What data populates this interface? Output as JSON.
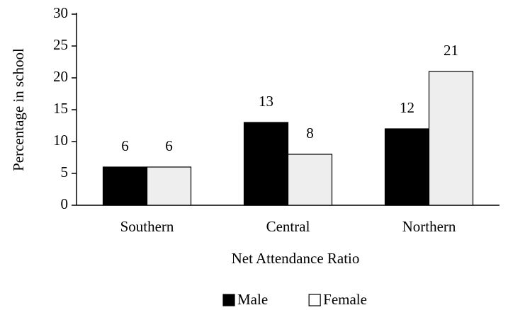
{
  "chart_data": {
    "type": "bar",
    "categories": [
      "Southern",
      "Central",
      "Northern"
    ],
    "series": [
      {
        "name": "Male",
        "color": "#000000",
        "values": [
          6,
          13,
          12
        ]
      },
      {
        "name": "Female",
        "color": "#eeeeee",
        "values": [
          6,
          8,
          21
        ]
      }
    ],
    "x_label": "Net Attendance Ratio",
    "y_label": "Percentage in school",
    "ylim": [
      0,
      30
    ],
    "yticks": [
      0,
      5,
      10,
      15,
      20,
      25,
      30
    ],
    "grid": false,
    "legend": "bottom"
  }
}
